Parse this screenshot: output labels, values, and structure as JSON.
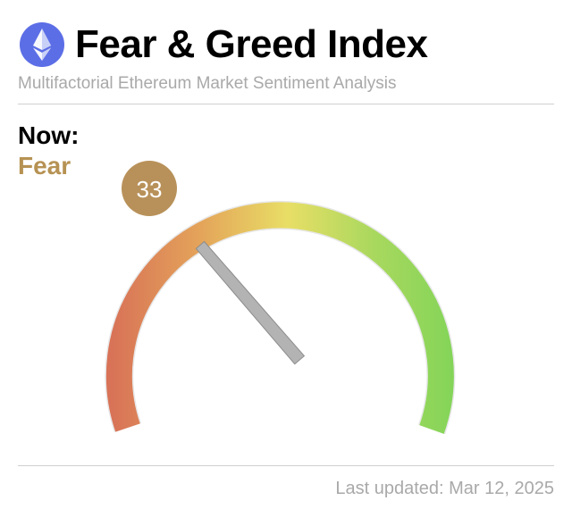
{
  "header": {
    "title": "Fear & Greed Index",
    "subtitle": "Multifactorial Ethereum Market Sentiment Analysis",
    "logo_icon": "ethereum-icon"
  },
  "current": {
    "now_label": "Now:",
    "sentiment": "Fear",
    "value": "33",
    "value_numeric": 33,
    "scale_min": 0,
    "scale_max": 100
  },
  "footer": {
    "last_updated_label": "Last updated:",
    "last_updated_date": "Mar 12, 2025"
  },
  "colors": {
    "sentiment": "#b69253",
    "badge": "#b8915a",
    "gauge_extreme_fear": "#d87357",
    "gauge_fear": "#e4a45a",
    "gauge_neutral": "#e8de66",
    "gauge_greed": "#a8d85e",
    "gauge_extreme_greed": "#7fd458",
    "needle": "#b3b3b3",
    "logo_bg": "#5c6ee6"
  }
}
